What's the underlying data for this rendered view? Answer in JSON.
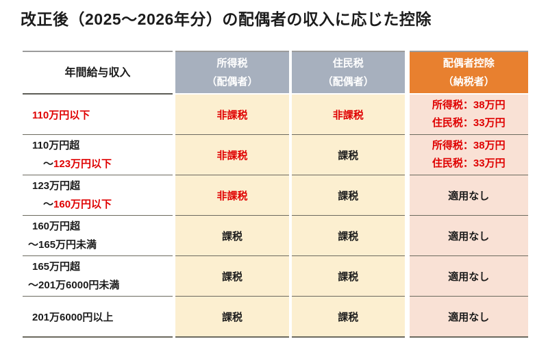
{
  "title": "改正後（2025～2026年分）の配偶者の収入に応じた控除",
  "colors": {
    "header_gray_blue": "#a7b0be",
    "header_orange": "#e8802f",
    "cell_cream": "#fcefd0",
    "cell_pink": "#f9e1d5",
    "highlight_red": "#df0000",
    "grid_line": "#6b695e",
    "text_black": "#1b1b1b"
  },
  "table": {
    "headers": [
      {
        "line1": "年間給与収入",
        "line2": ""
      },
      {
        "line1": "所得税",
        "line2": "（配偶者）"
      },
      {
        "line1": "住民税",
        "line2": "（配偶者）"
      },
      {
        "line1": "配偶者控除",
        "line2": "（納税者）"
      }
    ],
    "rows": [
      {
        "c1_l1": "110万円以下",
        "c2": "非課税",
        "c3": "非課税",
        "c4_l1": "所得税：38万円",
        "c4_l2": "住民税：33万円"
      },
      {
        "c1_l1": "110万円超",
        "c1_l2_tilde": "～",
        "c1_l2_text": "123万円以下",
        "c2": "非課税",
        "c3": "課税",
        "c4_l1": "所得税：38万円",
        "c4_l2": "住民税：33万円"
      },
      {
        "c1_l1": "123万円超",
        "c1_l2_tilde": "～",
        "c1_l2_text": "160万円以下",
        "c2": "非課税",
        "c3": "課税",
        "c4_l1": "適用なし"
      },
      {
        "c1_l1": "160万円超",
        "c1_l2_tilde": "～",
        "c1_l2_text": "165万円未満",
        "c2": "課税",
        "c3": "課税",
        "c4_l1": "適用なし"
      },
      {
        "c1_l1": "165万円超",
        "c1_l2_tilde": "～",
        "c1_l2_text": "201万6000円未満",
        "c2": "課税",
        "c3": "課税",
        "c4_l1": "適用なし"
      },
      {
        "c1_l1": "201万6000円以上",
        "c2": "課税",
        "c3": "課税",
        "c4_l1": "適用なし"
      }
    ]
  },
  "chart_data": {
    "type": "table",
    "title": "改正後（2025～2026年分）の配偶者の収入に応じた控除",
    "columns": [
      "年間給与収入",
      "所得税（配偶者）",
      "住民税（配偶者）",
      "配偶者控除（納税者）"
    ],
    "rows": [
      [
        "110万円以下",
        "非課税",
        "非課税",
        "所得税：38万円 住民税：33万円"
      ],
      [
        "110万円超～123万円以下",
        "非課税",
        "課税",
        "所得税：38万円 住民税：33万円"
      ],
      [
        "123万円超～160万円以下",
        "非課税",
        "課税",
        "適用なし"
      ],
      [
        "160万円超～165万円未満",
        "課税",
        "課税",
        "適用なし"
      ],
      [
        "165万円超～201万6000円未満",
        "課税",
        "課税",
        "適用なし"
      ],
      [
        "201万6000円以上",
        "課税",
        "課税",
        "適用なし"
      ]
    ],
    "legend_position": "none",
    "notes": "red text marks non-taxable statuses and deduction amounts; rows 1-2 deduction = income tax 380k JPY / resident tax 330k JPY"
  }
}
